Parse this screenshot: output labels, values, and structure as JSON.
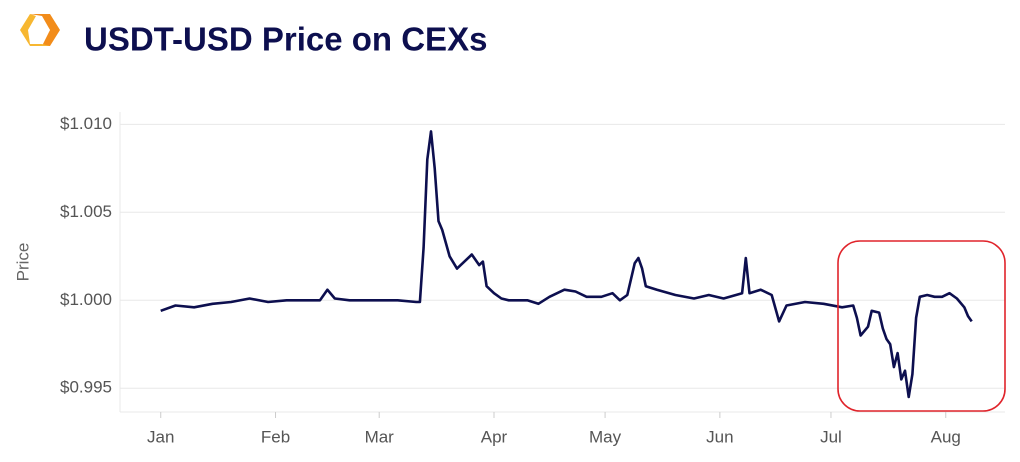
{
  "chart_data": {
    "type": "line",
    "title": "USDT-USD Price on CEXs",
    "y_label": "Price",
    "xlim": [
      -10,
      229
    ],
    "xticks": [
      {
        "value": 1,
        "label": "Jan"
      },
      {
        "value": 32,
        "label": "Feb"
      },
      {
        "value": 60,
        "label": "Mar"
      },
      {
        "value": 91,
        "label": "Apr"
      },
      {
        "value": 121,
        "label": "May"
      },
      {
        "value": 152,
        "label": "Jun"
      },
      {
        "value": 182,
        "label": "Jul"
      },
      {
        "value": 213,
        "label": "Aug"
      }
    ],
    "ylim": [
      0.99365,
      1.0107
    ],
    "yticks": [
      {
        "value": 0.995,
        "label": "$0.995"
      },
      {
        "value": 1.0,
        "label": "$1.000"
      },
      {
        "value": 1.005,
        "label": "$1.005"
      },
      {
        "value": 1.01,
        "label": "$1.010"
      }
    ],
    "grid": true,
    "series": [
      {
        "name": "USDT-USD",
        "color": "#0d0f4f",
        "x": [
          1,
          5,
          10,
          15,
          20,
          25,
          30,
          35,
          40,
          44,
          46,
          48,
          52,
          56,
          60,
          65,
          70,
          71,
          72,
          73,
          74,
          75,
          76,
          77,
          79,
          81,
          83,
          85,
          87,
          88,
          89,
          91,
          93,
          95,
          100,
          103,
          106,
          110,
          113,
          116,
          120,
          123,
          125,
          127,
          129,
          130,
          131,
          132,
          135,
          140,
          145,
          149,
          153,
          158,
          159,
          160,
          163,
          166,
          168,
          170,
          175,
          180,
          185,
          188,
          189,
          190,
          192,
          193,
          195,
          196,
          197,
          198,
          199,
          200,
          201,
          202,
          203,
          204,
          205,
          206,
          208,
          210,
          212,
          214,
          216,
          218,
          219,
          220
        ],
        "values": [
          0.9994,
          0.9997,
          0.9996,
          0.9998,
          0.9999,
          1.0001,
          0.9999,
          1.0,
          1.0,
          1.0,
          1.0006,
          1.0001,
          1.0,
          1.0,
          1.0,
          1.0,
          0.9999,
          0.9999,
          1.003,
          1.008,
          1.0096,
          1.0075,
          1.0045,
          1.004,
          1.0025,
          1.0018,
          1.0022,
          1.0026,
          1.002,
          1.0022,
          1.0008,
          1.0004,
          1.0001,
          1.0,
          1.0,
          0.9998,
          1.0002,
          1.0006,
          1.0005,
          1.0002,
          1.0002,
          1.0004,
          1.0,
          1.0003,
          1.0021,
          1.0024,
          1.0018,
          1.0008,
          1.0006,
          1.0003,
          1.0001,
          1.0003,
          1.0001,
          1.0004,
          1.0024,
          1.0004,
          1.0006,
          1.0003,
          0.9988,
          0.9997,
          0.9999,
          0.9998,
          0.9996,
          0.9997,
          0.999,
          0.998,
          0.9985,
          0.9994,
          0.9993,
          0.9984,
          0.9978,
          0.9975,
          0.9962,
          0.997,
          0.9955,
          0.996,
          0.9945,
          0.9958,
          0.999,
          1.0002,
          1.0003,
          1.0002,
          1.0002,
          1.0004,
          1.0001,
          0.9996,
          0.9991,
          0.9988
        ]
      }
    ]
  }
}
